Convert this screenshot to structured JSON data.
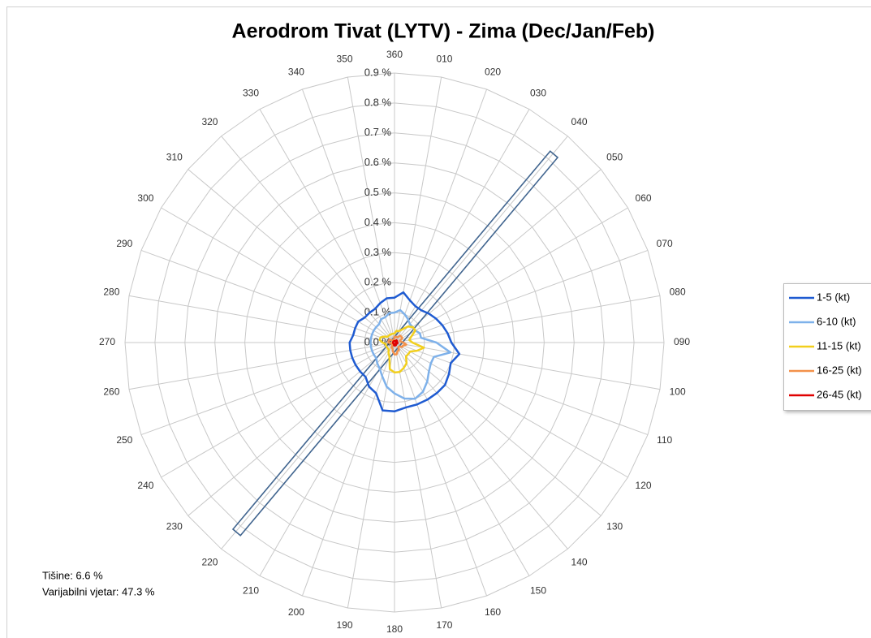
{
  "chart_data": {
    "type": "radar",
    "title": "Aerodrom Tivat (LYTV) - Zima (Dec/Jan/Feb)",
    "annotations": [
      "Tišine: 6.6 %",
      "Varijabilni vjetar: 47.3 %"
    ],
    "categories": [
      "360",
      "010",
      "020",
      "030",
      "040",
      "050",
      "060",
      "070",
      "080",
      "090",
      "100",
      "110",
      "120",
      "130",
      "140",
      "150",
      "160",
      "170",
      "180",
      "190",
      "200",
      "210",
      "220",
      "230",
      "240",
      "250",
      "260",
      "270",
      "280",
      "290",
      "300",
      "310",
      "320",
      "330",
      "340",
      "350"
    ],
    "ylim": [
      0,
      0.9
    ],
    "yticks": [
      {
        "value": 0,
        "label": "0.0 %"
      },
      {
        "value": 0.1,
        "label": "0.1 %"
      },
      {
        "value": 0.2,
        "label": "0.2 %"
      },
      {
        "value": 0.3,
        "label": "0.3 %"
      },
      {
        "value": 0.4,
        "label": "0.4 %"
      },
      {
        "value": 0.5,
        "label": "0.5 %"
      },
      {
        "value": 0.6,
        "label": "0.6 %"
      },
      {
        "value": 0.7,
        "label": "0.7 %"
      },
      {
        "value": 0.8,
        "label": "0.8 %"
      },
      {
        "value": 0.9,
        "label": "0.9 %"
      }
    ],
    "grid": true,
    "legend": "right",
    "series": [
      {
        "name": "1-5 (kt)",
        "color": "#1f5bd1",
        "values": [
          0.15,
          0.17,
          0.15,
          0.14,
          0.14,
          0.15,
          0.16,
          0.17,
          0.18,
          0.19,
          0.22,
          0.2,
          0.21,
          0.22,
          0.22,
          0.22,
          0.22,
          0.22,
          0.23,
          0.23,
          0.18,
          0.17,
          0.15,
          0.15,
          0.15,
          0.15,
          0.15,
          0.15,
          0.14,
          0.14,
          0.14,
          0.13,
          0.13,
          0.13,
          0.14,
          0.15
        ]
      },
      {
        "name": "6-10 (kt)",
        "color": "#7eb1ea",
        "values": [
          0.1,
          0.11,
          0.1,
          0.09,
          0.08,
          0.08,
          0.08,
          0.09,
          0.09,
          0.14,
          0.19,
          0.14,
          0.14,
          0.15,
          0.17,
          0.19,
          0.2,
          0.19,
          0.17,
          0.15,
          0.12,
          0.1,
          0.09,
          0.08,
          0.08,
          0.08,
          0.08,
          0.08,
          0.08,
          0.08,
          0.08,
          0.08,
          0.08,
          0.09,
          0.09,
          0.1
        ]
      },
      {
        "name": "11-15 (kt)",
        "color": "#f2cf1d",
        "values": [
          0.03,
          0.04,
          0.04,
          0.05,
          0.07,
          0.08,
          0.08,
          0.06,
          0.05,
          0.06,
          0.1,
          0.08,
          0.06,
          0.06,
          0.06,
          0.08,
          0.09,
          0.1,
          0.1,
          0.09,
          0.05,
          0.04,
          0.03,
          0.03,
          0.03,
          0.03,
          0.03,
          0.04,
          0.05,
          0.05,
          0.04,
          0.03,
          0.03,
          0.03,
          0.03,
          0.03
        ]
      },
      {
        "name": "16-25 (kt)",
        "color": "#f3914a",
        "values": [
          0.02,
          0.02,
          0.02,
          0.02,
          0.03,
          0.03,
          0.03,
          0.02,
          0.02,
          0.03,
          0.04,
          0.03,
          0.03,
          0.02,
          0.02,
          0.03,
          0.03,
          0.04,
          0.04,
          0.03,
          0.02,
          0.02,
          0.01,
          0.01,
          0.01,
          0.01,
          0.01,
          0.02,
          0.02,
          0.02,
          0.02,
          0.01,
          0.01,
          0.01,
          0.01,
          0.01
        ]
      },
      {
        "name": "26-45 (kt)",
        "color": "#e00000",
        "values": [
          0.005,
          0.005,
          0.005,
          0.005,
          0.01,
          0.01,
          0.01,
          0.005,
          0.005,
          0.01,
          0.01,
          0.01,
          0.005,
          0.005,
          0.005,
          0.01,
          0.01,
          0.01,
          0.01,
          0.01,
          0.005,
          0.005,
          0.005,
          0.005,
          0.005,
          0.005,
          0.005,
          0.005,
          0.005,
          0.005,
          0.005,
          0.005,
          0.005,
          0.005,
          0.005,
          0.005
        ]
      }
    ]
  }
}
